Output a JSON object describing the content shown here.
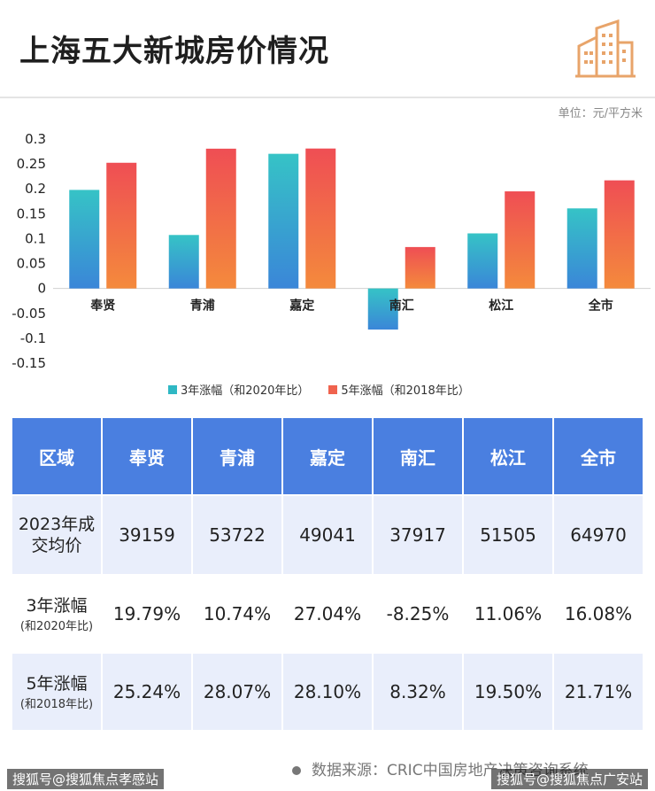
{
  "title": "上海五大新城房价情况",
  "unit": "单位：元/平方米",
  "chart_data": {
    "type": "bar",
    "categories": [
      "奉贤",
      "青浦",
      "嘉定",
      "南汇",
      "松江",
      "全市"
    ],
    "series": [
      {
        "name": "3年涨幅（和2020年比）",
        "values": [
          0.1979,
          0.1074,
          0.2704,
          -0.0825,
          0.1106,
          0.1608
        ],
        "color": "#2fb8c4"
      },
      {
        "name": "5年涨幅（和2018年比）",
        "values": [
          0.2524,
          0.2807,
          0.281,
          0.0832,
          0.195,
          0.2171
        ],
        "color": "#f0634e"
      }
    ],
    "ylim": [
      -0.15,
      0.3
    ],
    "yticks": [
      "0.3",
      "0.25",
      "0.2",
      "0.15",
      "0.1",
      "0.05",
      "0",
      "-0.05",
      "-0.1",
      "-0.15"
    ],
    "grid": false,
    "legend": "bottom"
  },
  "table": {
    "header": [
      "区域",
      "奉贤",
      "青浦",
      "嘉定",
      "南汇",
      "松江",
      "全市"
    ],
    "rows": [
      {
        "label": "2023年成交均价",
        "label_lines": [
          "2023年成",
          "交均价"
        ],
        "sub": "",
        "values": [
          "39159",
          "53722",
          "49041",
          "37917",
          "51505",
          "64970"
        ]
      },
      {
        "label_lines": [
          "3年涨幅"
        ],
        "sub": "(和2020年比)",
        "values": [
          "19.79%",
          "10.74%",
          "27.04%",
          "-8.25%",
          "11.06%",
          "16.08%"
        ]
      },
      {
        "label_lines": [
          "5年涨幅"
        ],
        "sub": "(和2018年比)",
        "values": [
          "25.24%",
          "28.07%",
          "28.10%",
          "8.32%",
          "19.50%",
          "21.71%"
        ]
      }
    ]
  },
  "source": "数据来源：CRIC中国房地产决策咨询系统",
  "watermark_left": "搜狐号@搜狐焦点孝感站",
  "watermark_right": "搜狐号@搜狐焦点广安站"
}
